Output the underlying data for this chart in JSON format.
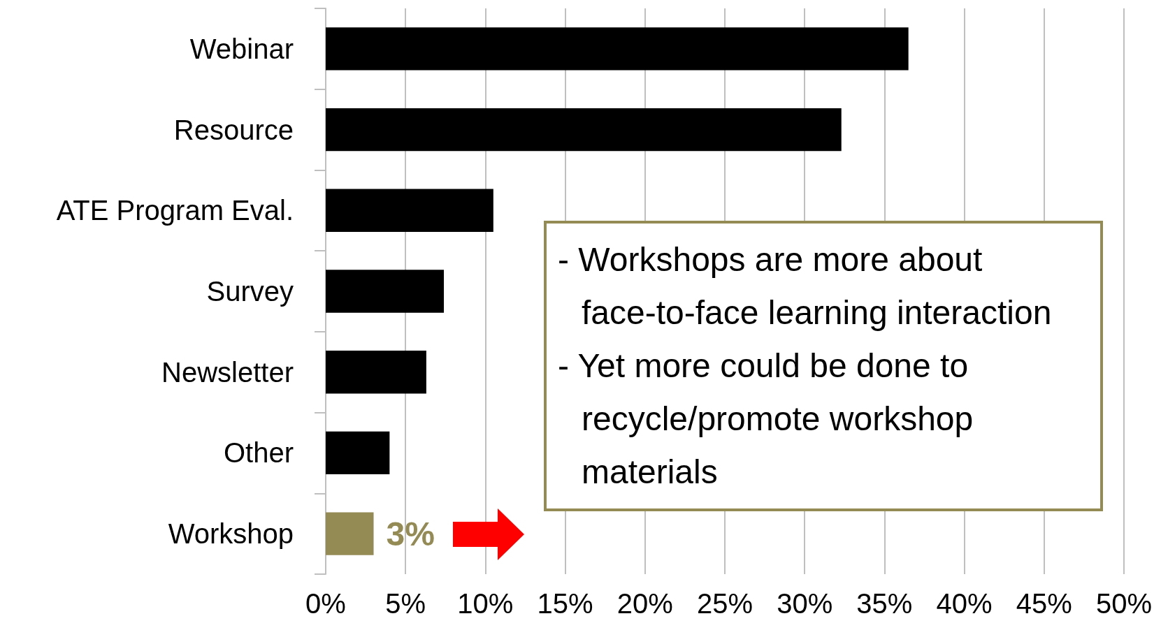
{
  "chart_data": {
    "type": "bar",
    "orientation": "horizontal",
    "categories": [
      "Webinar",
      "Resource",
      "ATE Program Eval.",
      "Survey",
      "Newsletter",
      "Other",
      "Workshop"
    ],
    "values": [
      36.5,
      32.3,
      10.5,
      7.4,
      6.3,
      4.0,
      3
    ],
    "colors": [
      "#000000",
      "#000000",
      "#000000",
      "#000000",
      "#000000",
      "#000000",
      "#948a54"
    ],
    "value_labels": [
      null,
      null,
      null,
      null,
      null,
      null,
      "3%"
    ],
    "xlim": [
      0,
      50
    ],
    "xticks": [
      {
        "value": 0,
        "label": "0%"
      },
      {
        "value": 5,
        "label": "5%"
      },
      {
        "value": 10,
        "label": "10%"
      },
      {
        "value": 15,
        "label": "15%"
      },
      {
        "value": 20,
        "label": "20%"
      },
      {
        "value": 25,
        "label": "25%"
      },
      {
        "value": 30,
        "label": "30%"
      },
      {
        "value": 35,
        "label": "35%"
      },
      {
        "value": 40,
        "label": "40%"
      },
      {
        "value": 45,
        "label": "45%"
      },
      {
        "value": 50,
        "label": "50%"
      }
    ],
    "grid": "x",
    "annotations": [
      "- Workshops are more about face-to-face learning interaction",
      "- Yet more could be done to recycle/promote workshop materials"
    ]
  }
}
